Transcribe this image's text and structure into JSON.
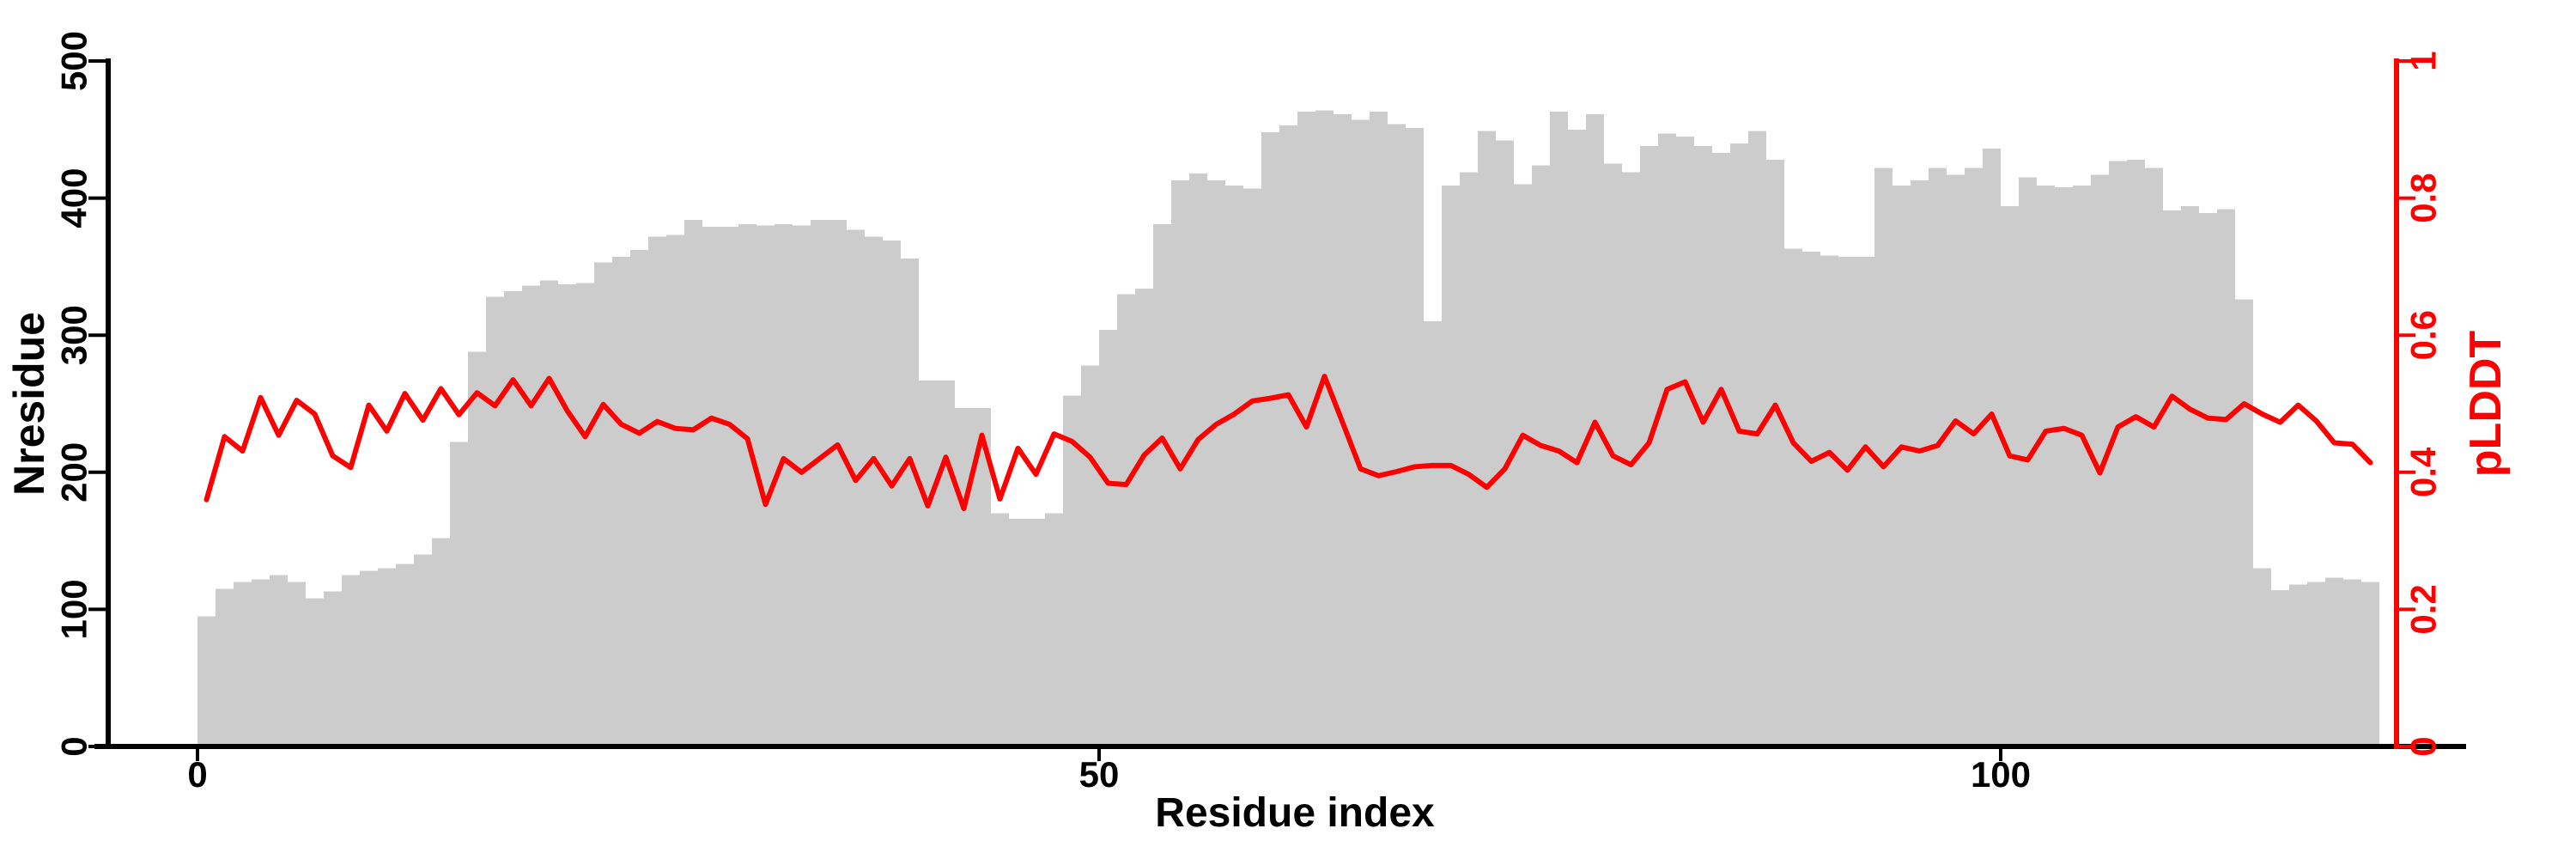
{
  "chart_data": {
    "type": "bar",
    "subtype": "bar-with-secondary-line",
    "title": "",
    "xlabel": "Residue index",
    "ylabel_left": "Nresidue",
    "ylabel_right": "pLDDT",
    "x_start": 0,
    "x_ticks": [
      0,
      50,
      100
    ],
    "y_left_ticks": [
      0,
      100,
      200,
      300,
      400,
      500
    ],
    "y_right_ticks": [
      0,
      0.2,
      0.4,
      0.6,
      0.8,
      1
    ],
    "ylim_left": [
      0,
      500
    ],
    "ylim_right": [
      0,
      1
    ],
    "grid": false,
    "legend_position": "none",
    "colors": {
      "bar": "#cccccc",
      "line": "#ff0000",
      "left_axis": "#000000",
      "bottom_axis": "#000000",
      "right_axis": "#ff0000",
      "background": "#ffffff"
    },
    "series": [
      {
        "name": "Nresidue",
        "type": "bar",
        "axis": "left",
        "values": [
          95,
          115,
          120,
          122,
          125,
          120,
          108,
          113,
          125,
          128,
          130,
          133,
          140,
          152,
          222,
          288,
          328,
          332,
          336,
          340,
          337,
          338,
          353,
          357,
          362,
          372,
          373,
          384,
          379,
          379,
          381,
          380,
          381,
          380,
          384,
          384,
          377,
          372,
          369,
          356,
          267,
          267,
          247,
          247,
          170,
          166,
          166,
          170,
          256,
          278,
          304,
          330,
          334,
          381,
          413,
          418,
          413,
          409,
          407,
          448,
          453,
          463,
          464,
          461,
          457,
          463,
          454,
          451,
          310,
          409,
          419,
          449,
          442,
          410,
          424,
          463,
          450,
          461,
          425,
          419,
          438,
          447,
          445,
          438,
          433,
          440,
          449,
          428,
          363,
          361,
          358,
          357,
          357,
          422,
          409,
          413,
          422,
          417,
          422,
          436,
          394,
          415,
          409,
          408,
          409,
          417,
          427,
          428,
          422,
          391,
          394,
          389,
          392,
          326,
          130,
          114,
          118,
          120,
          123,
          122,
          120
        ]
      },
      {
        "name": "pLDDT",
        "type": "line",
        "axis": "right",
        "values": [
          0.36,
          0.452,
          0.431,
          0.509,
          0.454,
          0.505,
          0.485,
          0.424,
          0.407,
          0.498,
          0.46,
          0.515,
          0.476,
          0.522,
          0.484,
          0.516,
          0.497,
          0.535,
          0.497,
          0.537,
          0.49,
          0.452,
          0.499,
          0.47,
          0.457,
          0.474,
          0.464,
          0.462,
          0.479,
          0.47,
          0.449,
          0.353,
          0.42,
          0.4,
          0.42,
          0.44,
          0.388,
          0.42,
          0.38,
          0.42,
          0.351,
          0.422,
          0.347,
          0.454,
          0.361,
          0.435,
          0.397,
          0.456,
          0.445,
          0.422,
          0.384,
          0.382,
          0.425,
          0.45,
          0.405,
          0.448,
          0.47,
          0.485,
          0.504,
          0.508,
          0.513,
          0.466,
          0.54,
          0.473,
          0.405,
          0.395,
          0.401,
          0.408,
          0.41,
          0.41,
          0.397,
          0.378,
          0.405,
          0.454,
          0.439,
          0.431,
          0.414,
          0.473,
          0.424,
          0.411,
          0.443,
          0.521,
          0.532,
          0.473,
          0.521,
          0.46,
          0.456,
          0.498,
          0.443,
          0.416,
          0.429,
          0.403,
          0.437,
          0.408,
          0.437,
          0.431,
          0.439,
          0.475,
          0.456,
          0.485,
          0.424,
          0.418,
          0.46,
          0.464,
          0.454,
          0.399,
          0.466,
          0.481,
          0.466,
          0.511,
          0.492,
          0.479,
          0.477,
          0.5,
          0.485,
          0.473,
          0.498,
          0.475,
          0.443,
          0.441,
          0.414
        ]
      }
    ]
  }
}
